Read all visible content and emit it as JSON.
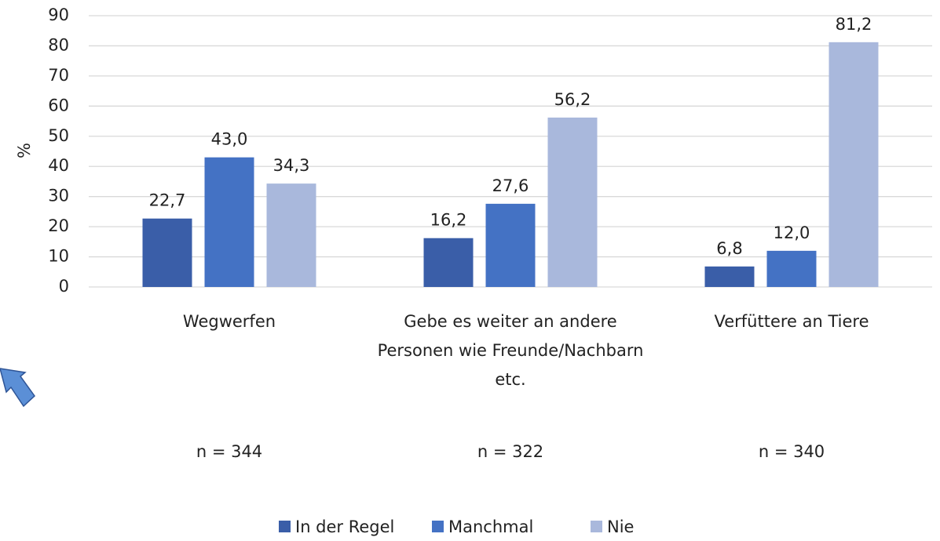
{
  "chart_data": {
    "type": "bar",
    "y_label": "%",
    "categories": [
      "Wegwerfen",
      "Gebe es weiter an andere Personen wie Freunde/Nachbarn etc.",
      "Verfüttere an Tiere"
    ],
    "series": [
      {
        "name": "In der Regel",
        "color": "#3a5ea8",
        "values": [
          22.7,
          16.2,
          6.8
        ],
        "value_labels": [
          "22,7",
          "16,2",
          "6,8"
        ]
      },
      {
        "name": "Manchmal",
        "color": "#4472c4",
        "values": [
          43.0,
          27.6,
          12.0
        ],
        "value_labels": [
          "43,0",
          "27,6",
          "12,0"
        ]
      },
      {
        "name": "Nie",
        "color": "#a9b8dc",
        "values": [
          34.3,
          56.2,
          81.2
        ],
        "value_labels": [
          "34,3",
          "56,2",
          "81,2"
        ]
      }
    ],
    "annotations": [
      "n = 344",
      "n = 322",
      "n = 340"
    ],
    "ylim": [
      0,
      90
    ],
    "yticks": [
      0,
      10,
      20,
      30,
      40,
      50,
      60,
      70,
      80,
      90
    ],
    "grid": true,
    "legend": "bottom"
  }
}
